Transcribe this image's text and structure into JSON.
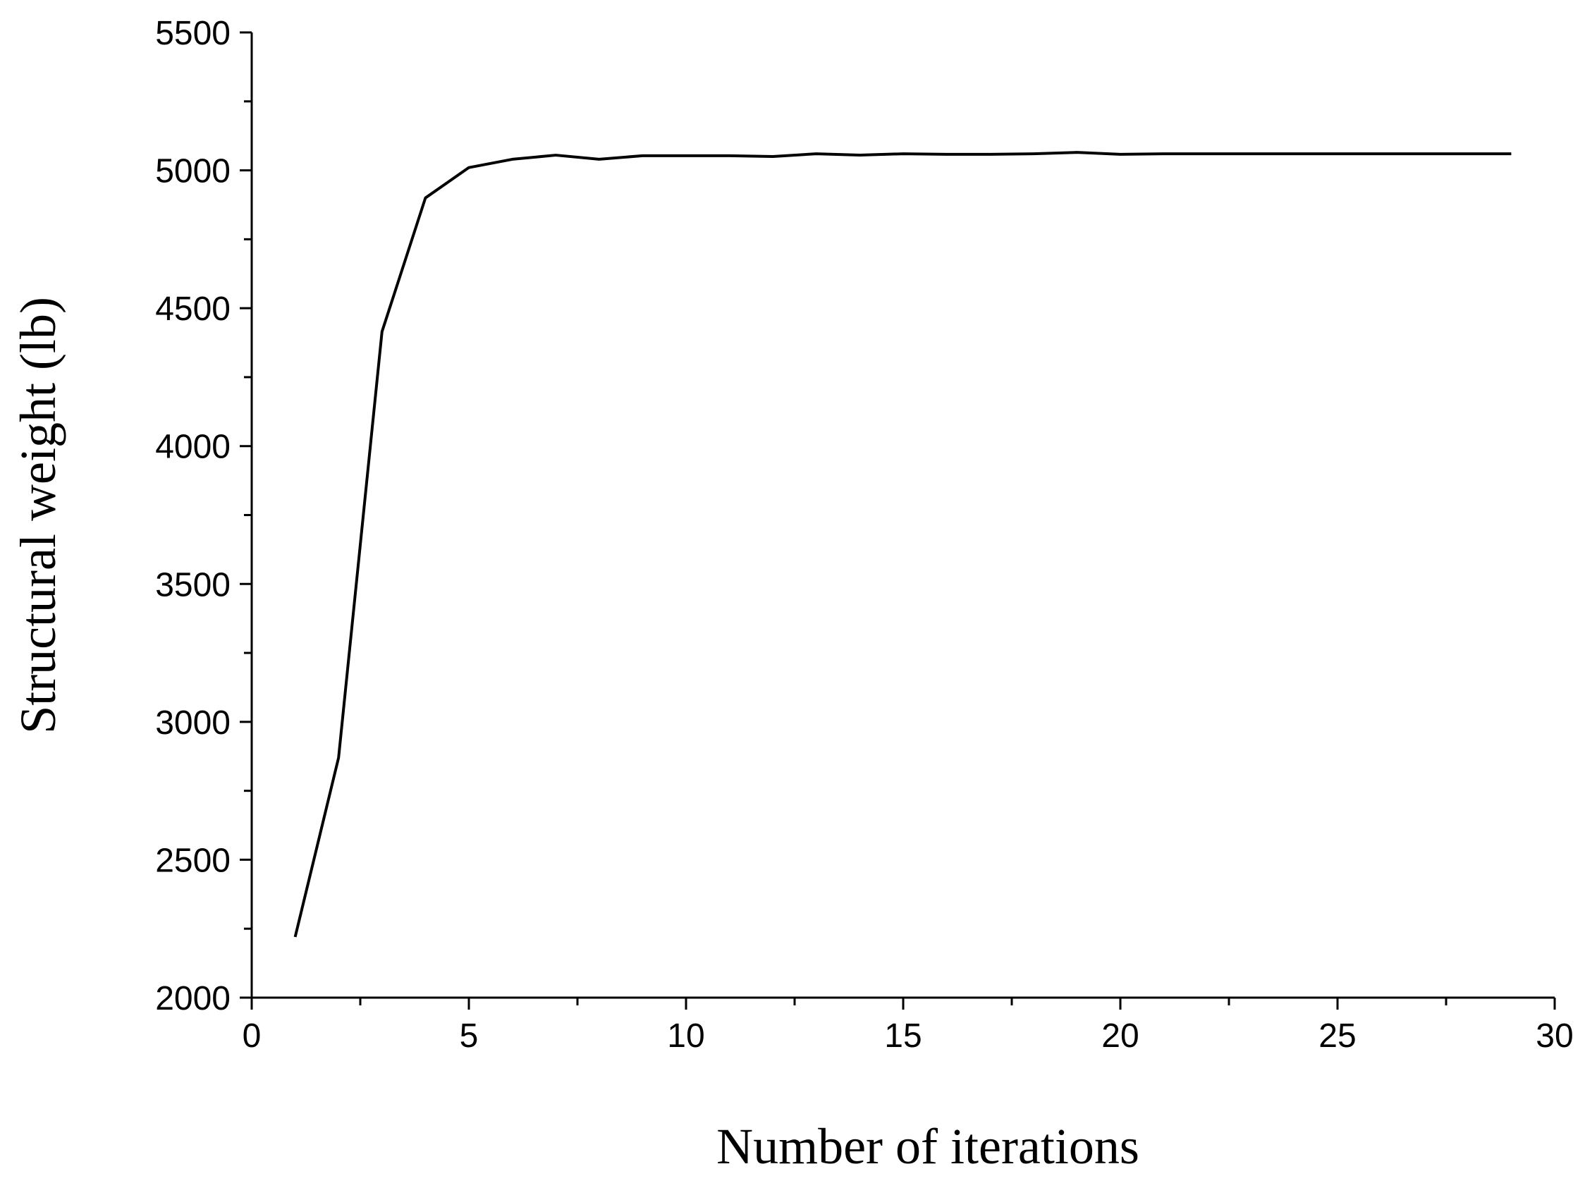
{
  "chart_data": {
    "type": "line",
    "x_label": "Number of iterations",
    "y_label": "Structural weight (lb)",
    "x": [
      1,
      2,
      3,
      4,
      5,
      6,
      7,
      8,
      9,
      10,
      11,
      12,
      13,
      14,
      15,
      16,
      17,
      18,
      19,
      20,
      21,
      22,
      23,
      24,
      25,
      26,
      27,
      28,
      29
    ],
    "values": [
      2220,
      2870,
      4415,
      4900,
      5010,
      5040,
      5055,
      5040,
      5053,
      5053,
      5053,
      5050,
      5060,
      5055,
      5060,
      5058,
      5058,
      5060,
      5065,
      5058,
      5060,
      5060,
      5060,
      5060,
      5060,
      5060,
      5060,
      5060,
      5060
    ],
    "color": "#000000",
    "xlim": [
      0,
      30
    ],
    "xticks": [
      0,
      5,
      10,
      15,
      20,
      25,
      30
    ],
    "ylim": [
      2000,
      5500
    ],
    "yticks": [
      2000,
      2500,
      3000,
      3500,
      4000,
      4500,
      5000,
      5500
    ],
    "grid": false
  }
}
